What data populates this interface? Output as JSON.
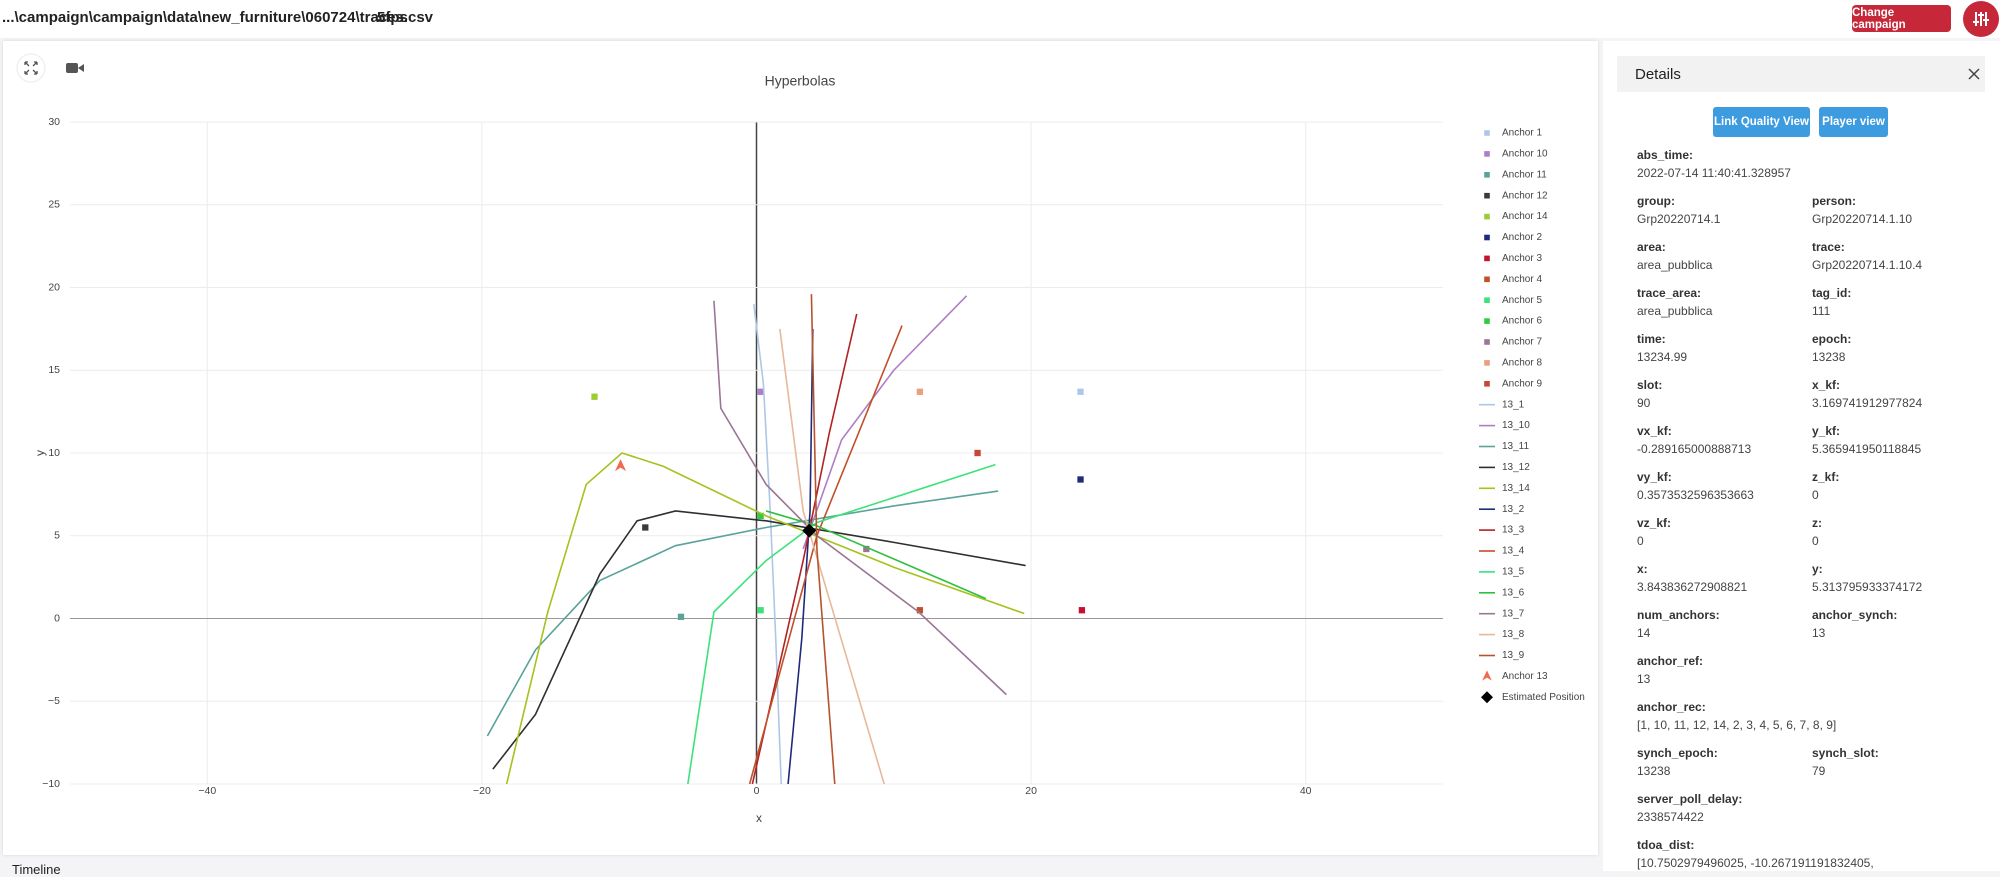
{
  "header": {
    "path": "...\\campaign\\campaign\\data\\new_furniture\\060724\\traces.csv",
    "fps": "5fps",
    "change_button": "Change campaign"
  },
  "chart_data": {
    "type": "scatter",
    "title": "Hyperbolas",
    "x_label": "x",
    "y_label": "y",
    "xlim": [
      -50,
      50
    ],
    "ylim": [
      -10,
      30
    ],
    "xticks": [
      {
        "value": -40,
        "label": "−40"
      },
      {
        "value": -20,
        "label": "−20"
      },
      0,
      20,
      40
    ],
    "yticks": [
      {
        "value": -10,
        "label": "−10"
      },
      {
        "value": -5,
        "label": "−5"
      },
      0,
      5,
      10,
      15,
      20,
      25,
      30
    ],
    "grid": true,
    "series": [
      {
        "name": "Anchor 1",
        "color": "#aec7e8",
        "marker": "square",
        "x": [
          23.6
        ],
        "values": [
          13.7
        ]
      },
      {
        "name": "Anchor 10",
        "color": "#b07cc6",
        "marker": "square",
        "x": [
          0.3
        ],
        "values": [
          13.7
        ]
      },
      {
        "name": "Anchor 11",
        "color": "#5aa39a",
        "marker": "square",
        "x": [
          -5.5
        ],
        "values": [
          0.1
        ]
      },
      {
        "name": "Anchor 12",
        "color": "#3a3a3a",
        "marker": "square",
        "x": [
          -8.1
        ],
        "values": [
          5.5
        ]
      },
      {
        "name": "Anchor 14",
        "color": "#9acd32",
        "marker": "square",
        "x": [
          -11.8
        ],
        "values": [
          13.4
        ]
      },
      {
        "name": "Anchor 2",
        "color": "#1f2a7a",
        "marker": "square",
        "x": [
          23.6
        ],
        "values": [
          8.4
        ]
      },
      {
        "name": "Anchor 3",
        "color": "#c8102e",
        "marker": "square",
        "x": [
          23.7
        ],
        "values": [
          0.5
        ]
      },
      {
        "name": "Anchor 4",
        "color": "#c0502a",
        "marker": "square",
        "x": [
          11.9
        ],
        "values": [
          0.5
        ]
      },
      {
        "name": "Anchor 5",
        "color": "#3ce27a",
        "marker": "square",
        "x": [
          0.3
        ],
        "values": [
          0.5
        ]
      },
      {
        "name": "Anchor 6",
        "color": "#2ecc40",
        "marker": "square",
        "x": [
          0.3
        ],
        "values": [
          6.2
        ]
      },
      {
        "name": "Anchor 7",
        "color": "#9b7595",
        "marker": "square",
        "x": [
          8.0
        ],
        "values": [
          4.2
        ]
      },
      {
        "name": "Anchor 8",
        "color": "#e8a07e",
        "marker": "square",
        "x": [
          11.9
        ],
        "values": [
          13.7
        ]
      },
      {
        "name": "Anchor 9",
        "color": "#c74634",
        "marker": "square",
        "x": [
          16.1
        ],
        "values": [
          10.0
        ]
      },
      {
        "name": "13_1",
        "color": "#aec7e8",
        "mode": "lines",
        "x": [
          -0.2,
          0.5,
          1.0,
          1.4,
          1.8
        ],
        "values": [
          19.0,
          14.2,
          6.5,
          -1.2,
          -10
        ]
      },
      {
        "name": "13_10",
        "color": "#b07cc6",
        "mode": "lines",
        "x": [
          3.4,
          6.2,
          10,
          15.3
        ],
        "values": [
          4.2,
          10.8,
          15,
          19.5
        ]
      },
      {
        "name": "13_11",
        "color": "#5aa39a",
        "mode": "lines",
        "x": [
          -19.6,
          -16.1,
          -11.4,
          -5.9,
          0.7,
          10,
          17.6
        ],
        "values": [
          -7.1,
          -1.9,
          2.3,
          4.4,
          5.5,
          6.8,
          7.7
        ]
      },
      {
        "name": "13_12",
        "color": "#2f2f2f",
        "mode": "lines",
        "x": [
          -19.2,
          -16.1,
          -11.4,
          -8.7,
          -5.9,
          0.7,
          10,
          19.6
        ],
        "values": [
          -9.1,
          -5.8,
          2.7,
          5.9,
          6.5,
          5.9,
          4.6,
          3.2
        ]
      },
      {
        "name": "13_14",
        "color": "#a5c21d",
        "mode": "lines",
        "x": [
          -18.2,
          -15.2,
          -12.4,
          -9.8,
          -6.8,
          0.7,
          10,
          19.5
        ],
        "values": [
          -10,
          0.4,
          8.1,
          10,
          9.2,
          6.2,
          3.1,
          0.3
        ]
      },
      {
        "name": "13_2",
        "color": "#1f2a7a",
        "mode": "lines",
        "x": [
          2.3,
          3.3,
          3.9,
          4.1
        ],
        "values": [
          -10,
          -1.2,
          6.5,
          17.5
        ]
      },
      {
        "name": "13_3",
        "color": "#b22222",
        "mode": "lines",
        "x": [
          -0.3,
          3.4,
          5.3,
          7.3
        ],
        "values": [
          -10,
          3.5,
          11.2,
          18.4
        ]
      },
      {
        "name": "13_4",
        "color": "#c0502a",
        "mode": "lines",
        "x": [
          -0.5,
          4.4,
          10.6
        ],
        "values": [
          -10,
          5,
          17.7
        ]
      },
      {
        "name": "13_5",
        "color": "#3ce27a",
        "mode": "lines",
        "x": [
          -5,
          -3.1,
          0.7,
          4.4,
          17.4
        ],
        "values": [
          -10,
          0.4,
          3.5,
          5.8,
          9.3
        ]
      },
      {
        "name": "13_6",
        "color": "#2fbf3f",
        "mode": "lines",
        "x": [
          0.7,
          4.4,
          16.7
        ],
        "values": [
          6.5,
          5.6,
          1.2
        ]
      },
      {
        "name": "13_7",
        "color": "#9b7595",
        "mode": "lines",
        "x": [
          -3.1,
          -2.6,
          0.7,
          4.4,
          11.8,
          18.2
        ],
        "values": [
          19.2,
          12.7,
          8.1,
          5,
          0.4,
          -4.6
        ]
      },
      {
        "name": "13_8",
        "color": "#e8b89a",
        "mode": "lines",
        "x": [
          1.7,
          3.4,
          9.3
        ],
        "values": [
          17.5,
          6.5,
          -10
        ]
      },
      {
        "name": "13_9",
        "color": "#b5532c",
        "mode": "lines",
        "x": [
          4.0,
          4.4,
          5.7
        ],
        "values": [
          19.6,
          4.2,
          -10
        ]
      },
      {
        "name": "Anchor 13",
        "color": "#f06a4f",
        "marker": "triangle",
        "x": [
          -9.9
        ],
        "values": [
          9.2
        ]
      },
      {
        "name": "Estimated Position",
        "color": "#000000",
        "marker": "diamond",
        "x": [
          3.84
        ],
        "values": [
          5.31
        ]
      }
    ]
  },
  "details": {
    "title": "Details",
    "buttons": [
      "Link Quality View",
      "Player view"
    ],
    "rows": [
      [
        {
          "label": "abs_time:",
          "value": "2022-07-14 11:40:41.328957"
        }
      ],
      [
        {
          "label": "group:",
          "value": "Grp20220714.1"
        },
        {
          "label": "person:",
          "value": "Grp20220714.1.10"
        }
      ],
      [
        {
          "label": "area:",
          "value": "area_pubblica"
        },
        {
          "label": "trace:",
          "value": "Grp20220714.1.10.4"
        }
      ],
      [
        {
          "label": "trace_area:",
          "value": "area_pubblica"
        },
        {
          "label": "tag_id:",
          "value": "111"
        }
      ],
      [
        {
          "label": "time:",
          "value": "13234.99"
        },
        {
          "label": "epoch:",
          "value": "13238"
        }
      ],
      [
        {
          "label": "slot:",
          "value": "90"
        },
        {
          "label": "x_kf:",
          "value": "3.169741912977824"
        }
      ],
      [
        {
          "label": "vx_kf:",
          "value": "-0.289165000888713"
        },
        {
          "label": "y_kf:",
          "value": "5.365941950118845"
        }
      ],
      [
        {
          "label": "vy_kf:",
          "value": "0.3573532596353663"
        },
        {
          "label": "z_kf:",
          "value": "0"
        }
      ],
      [
        {
          "label": "vz_kf:",
          "value": "0"
        },
        {
          "label": "z:",
          "value": "0"
        }
      ],
      [
        {
          "label": "x:",
          "value": "3.843836272908821"
        },
        {
          "label": "y:",
          "value": "5.313795933374172"
        }
      ],
      [
        {
          "label": "num_anchors:",
          "value": "14"
        },
        {
          "label": "anchor_synch:",
          "value": "13"
        }
      ],
      [
        {
          "label": "anchor_ref:",
          "value": "13"
        }
      ],
      [
        {
          "label": "anchor_rec:",
          "value": "[1, 10, 11, 12, 14, 2, 3, 4, 5, 6, 7, 8, 9]"
        }
      ],
      [
        {
          "label": "synch_epoch:",
          "value": "13238"
        },
        {
          "label": "synch_slot:",
          "value": "79"
        }
      ],
      [
        {
          "label": "server_poll_delay:",
          "value": "2338574422"
        }
      ],
      [
        {
          "label": "tdoa_dist:",
          "value": "[10.7502979496025, -10.267191191832405,"
        }
      ]
    ]
  },
  "footer": {
    "timeline": "Timeline"
  }
}
